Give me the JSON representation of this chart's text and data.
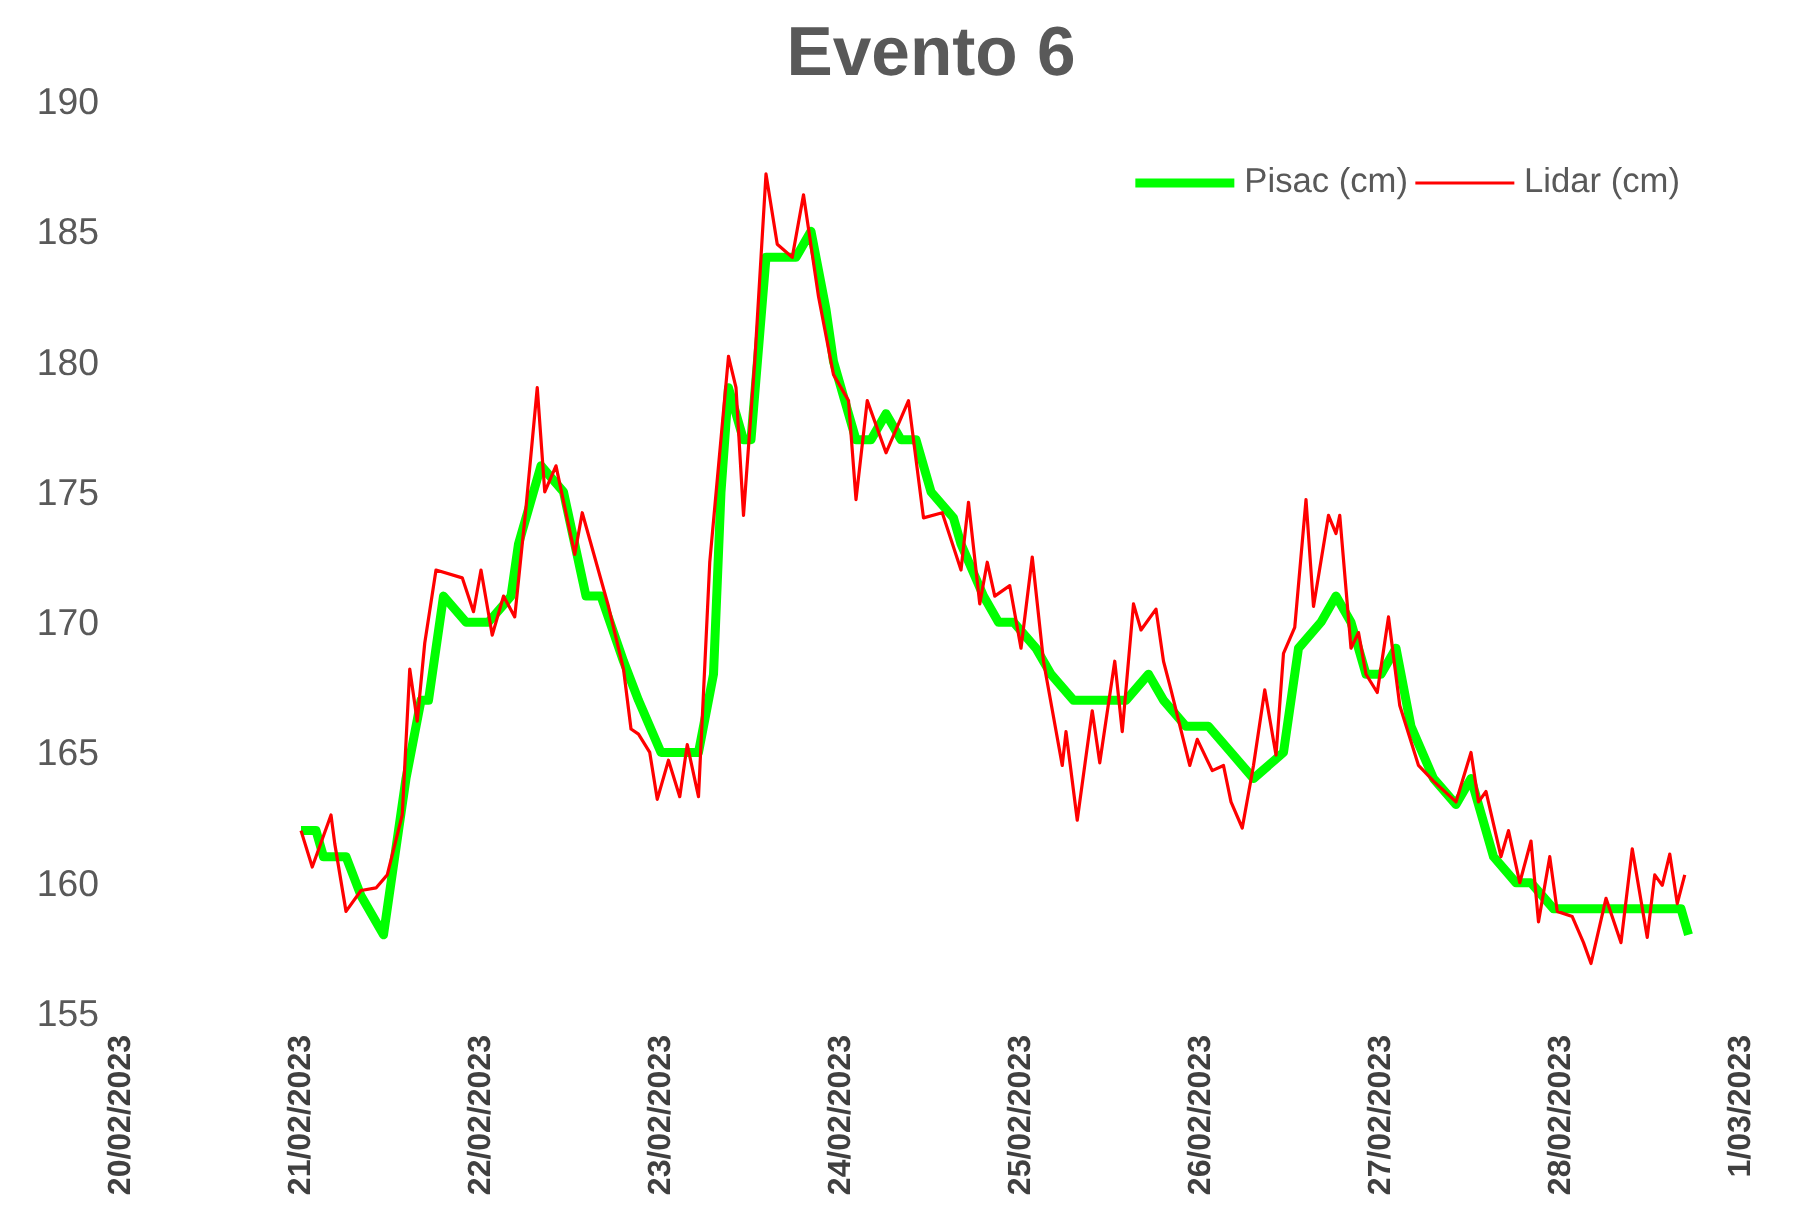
{
  "chart_data": {
    "type": "line",
    "title": "Evento 6",
    "xlim": [
      "2023-02-20",
      "2023-03-01"
    ],
    "xticks": [
      {
        "value": "2023-02-20",
        "label": "20/02/2023"
      },
      {
        "value": "2023-02-21",
        "label": "21/02/2023"
      },
      {
        "value": "2023-02-22",
        "label": "22/02/2023"
      },
      {
        "value": "2023-02-23",
        "label": "23/02/2023"
      },
      {
        "value": "2023-02-24",
        "label": "24/02/2023"
      },
      {
        "value": "2023-02-25",
        "label": "25/02/2023"
      },
      {
        "value": "2023-02-26",
        "label": "26/02/2023"
      },
      {
        "value": "2023-02-27",
        "label": "27/02/2023"
      },
      {
        "value": "2023-02-28",
        "label": "28/02/2023"
      },
      {
        "value": "2023-03-01",
        "label": "1/03/2023"
      }
    ],
    "ylim": [
      155,
      190
    ],
    "yticks": [
      155,
      160,
      165,
      170,
      175,
      180,
      185,
      190
    ],
    "grid": false,
    "legend": "top right",
    "marker": "none",
    "line_style": "solid",
    "series": [
      {
        "name": "Pisac (cm)",
        "color": "#00ff00",
        "x": [
          "2023-02-21T00:00",
          "2023-02-21T02:00",
          "2023-02-21T03:00",
          "2023-02-21T06:00",
          "2023-02-21T08:00",
          "2023-02-21T09:00",
          "2023-02-21T11:00",
          "2023-02-21T12:00",
          "2023-02-21T14:00",
          "2023-02-21T16:00",
          "2023-02-21T17:00",
          "2023-02-21T19:00",
          "2023-02-21T22:00",
          "2023-02-22T01:00",
          "2023-02-22T04:00",
          "2023-02-22T05:00",
          "2023-02-22T08:00",
          "2023-02-22T11:00",
          "2023-02-22T14:00",
          "2023-02-22T16:00",
          "2023-02-22T19:00",
          "2023-02-22T21:00",
          "2023-02-23T00:00",
          "2023-02-23T05:00",
          "2023-02-23T07:00",
          "2023-02-23T08:00",
          "2023-02-23T09:00",
          "2023-02-23T11:00",
          "2023-02-23T12:00",
          "2023-02-23T14:00",
          "2023-02-23T18:00",
          "2023-02-23T20:00",
          "2023-02-23T22:00",
          "2023-02-23T23:00",
          "2023-02-24T02:00",
          "2023-02-24T04:00",
          "2023-02-24T06:00",
          "2023-02-24T08:00",
          "2023-02-24T10:00",
          "2023-02-24T12:00",
          "2023-02-24T15:00",
          "2023-02-24T16:00",
          "2023-02-24T19:00",
          "2023-02-24T21:00",
          "2023-02-24T23:00",
          "2023-02-25T02:00",
          "2023-02-25T04:00",
          "2023-02-25T07:00",
          "2023-02-25T14:00",
          "2023-02-25T17:00",
          "2023-02-25T19:00",
          "2023-02-25T22:00",
          "2023-02-26T01:00",
          "2023-02-26T04:00",
          "2023-02-26T07:00",
          "2023-02-26T11:00",
          "2023-02-26T13:00",
          "2023-02-26T16:00",
          "2023-02-26T18:00",
          "2023-02-26T20:00",
          "2023-02-26T22:00",
          "2023-02-27T00:00",
          "2023-02-27T02:00",
          "2023-02-27T04:00",
          "2023-02-27T07:00",
          "2023-02-27T10:00",
          "2023-02-27T12:00",
          "2023-02-27T15:00",
          "2023-02-27T18:00",
          "2023-02-27T20:00",
          "2023-02-27T23:00",
          "2023-02-28T16:00",
          "2023-02-28T17:00"
        ],
        "values": [
          162,
          162,
          161,
          161,
          159.5,
          159,
          158,
          160,
          164,
          167,
          167,
          171,
          170,
          170,
          171,
          173,
          176,
          175,
          171,
          171,
          168.5,
          167,
          165,
          165,
          168,
          175,
          179,
          177,
          177,
          184,
          184,
          185,
          182,
          180,
          177,
          177,
          178,
          177,
          177,
          175,
          174,
          173,
          171,
          170,
          170,
          169,
          168,
          167,
          167,
          168,
          167,
          166,
          166,
          165,
          164,
          165,
          169,
          170,
          171,
          170,
          168,
          168,
          169,
          166,
          164,
          163,
          164,
          161,
          160,
          160,
          159,
          159,
          158
        ]
      },
      {
        "name": "Lidar (cm)",
        "color": "#ff0000",
        "x": [
          "2023-02-21T00:00",
          "2023-02-21T01:30",
          "2023-02-21T04:00",
          "2023-02-21T04:30",
          "2023-02-21T06:00",
          "2023-02-21T08:00",
          "2023-02-21T10:00",
          "2023-02-21T11:30",
          "2023-02-21T13:30",
          "2023-02-21T14:30",
          "2023-02-21T15:30",
          "2023-02-21T16:30",
          "2023-02-21T18:00",
          "2023-02-21T21:30",
          "2023-02-21T23:00",
          "2023-02-22T00:00",
          "2023-02-22T01:30",
          "2023-02-22T03:00",
          "2023-02-22T04:30",
          "2023-02-22T06:00",
          "2023-02-22T07:30",
          "2023-02-22T08:30",
          "2023-02-22T10:00",
          "2023-02-22T12:30",
          "2023-02-22T13:30",
          "2023-02-22T17:00",
          "2023-02-22T19:00",
          "2023-02-22T20:00",
          "2023-02-22T21:00",
          "2023-02-22T22:30",
          "2023-02-22T23:30",
          "2023-02-23T01:00",
          "2023-02-23T02:30",
          "2023-02-23T03:30",
          "2023-02-23T05:00",
          "2023-02-23T06:30",
          "2023-02-23T09:00",
          "2023-02-23T10:00",
          "2023-02-23T11:00",
          "2023-02-23T12:30",
          "2023-02-23T14:00",
          "2023-02-23T15:30",
          "2023-02-23T17:30",
          "2023-02-23T19:00",
          "2023-02-23T21:00",
          "2023-02-23T23:00",
          "2023-02-24T01:00",
          "2023-02-24T02:00",
          "2023-02-24T03:30",
          "2023-02-24T06:00",
          "2023-02-24T09:00",
          "2023-02-24T11:00",
          "2023-02-24T13:30",
          "2023-02-24T16:00",
          "2023-02-24T17:00",
          "2023-02-24T18:30",
          "2023-02-24T19:30",
          "2023-02-24T20:30",
          "2023-02-24T22:30",
          "2023-02-25T00:00",
          "2023-02-25T01:30",
          "2023-02-25T03:00",
          "2023-02-25T05:30",
          "2023-02-25T06:00",
          "2023-02-25T07:30",
          "2023-02-25T09:30",
          "2023-02-25T10:30",
          "2023-02-25T12:30",
          "2023-02-25T13:30",
          "2023-02-25T15:00",
          "2023-02-25T16:00",
          "2023-02-25T18:00",
          "2023-02-25T19:00",
          "2023-02-25T20:00",
          "2023-02-25T22:30",
          "2023-02-25T23:30",
          "2023-02-26T01:30",
          "2023-02-26T03:00",
          "2023-02-26T04:00",
          "2023-02-26T05:30",
          "2023-02-26T07:00",
          "2023-02-26T08:30",
          "2023-02-26T10:00",
          "2023-02-26T11:00",
          "2023-02-26T12:30",
          "2023-02-26T14:00",
          "2023-02-26T15:00",
          "2023-02-26T17:00",
          "2023-02-26T18:00",
          "2023-02-26T18:30",
          "2023-02-26T20:00",
          "2023-02-26T21:00",
          "2023-02-26T22:00",
          "2023-02-26T23:30",
          "2023-02-27T01:00",
          "2023-02-27T02:30",
          "2023-02-27T05:00",
          "2023-02-27T07:00",
          "2023-02-27T10:00",
          "2023-02-27T12:00",
          "2023-02-27T13:00",
          "2023-02-27T14:00",
          "2023-02-27T16:00",
          "2023-02-27T17:00",
          "2023-02-27T18:30",
          "2023-02-27T20:00",
          "2023-02-27T21:00",
          "2023-02-27T22:30",
          "2023-02-27T23:30",
          "2023-02-28T01:30",
          "2023-02-28T03:00",
          "2023-02-28T04:00",
          "2023-02-28T06:00",
          "2023-02-28T08:00",
          "2023-02-28T09:30",
          "2023-02-28T11:30",
          "2023-02-28T12:30",
          "2023-02-28T13:30",
          "2023-02-28T14:30",
          "2023-02-28T15:30",
          "2023-02-28T16:30"
        ],
        "values": [
          162,
          160.6,
          162.6,
          161.5,
          158.9,
          159.7,
          159.8,
          160.3,
          162.6,
          168.2,
          166.2,
          169.2,
          172,
          171.7,
          170.4,
          172,
          169.5,
          171,
          170.2,
          174.4,
          179,
          175,
          176,
          172.6,
          174.2,
          170.6,
          168.2,
          165.9,
          165.7,
          165,
          163.2,
          164.7,
          163.3,
          165.3,
          163.3,
          172.3,
          180.2,
          179,
          174.1,
          180,
          187.2,
          184.5,
          184,
          186.4,
          182.5,
          179.5,
          178.5,
          174.7,
          178.5,
          176.5,
          178.5,
          174,
          174.2,
          172,
          174.6,
          170.7,
          172.3,
          171,
          171.4,
          169,
          172.5,
          168.5,
          164.5,
          165.8,
          162.4,
          166.6,
          164.6,
          168.5,
          165.8,
          170.7,
          169.7,
          170.5,
          168.5,
          167.4,
          164.5,
          165.5,
          164.3,
          164.5,
          163.1,
          162.1,
          164.5,
          167.4,
          164.9,
          168.8,
          169.8,
          174.7,
          170.6,
          174.1,
          173.4,
          174.1,
          169,
          169.6,
          168,
          167.3,
          170.2,
          166.8,
          164.5,
          163.9,
          163.1,
          165,
          163.1,
          163.5,
          161,
          162,
          160,
          161.6,
          158.5,
          161,
          158.9,
          158.7,
          157.7,
          156.9,
          159.4,
          157.7,
          161.3,
          157.9,
          160.3,
          159.9,
          161.1,
          159.2,
          160.3
        ]
      }
    ]
  }
}
